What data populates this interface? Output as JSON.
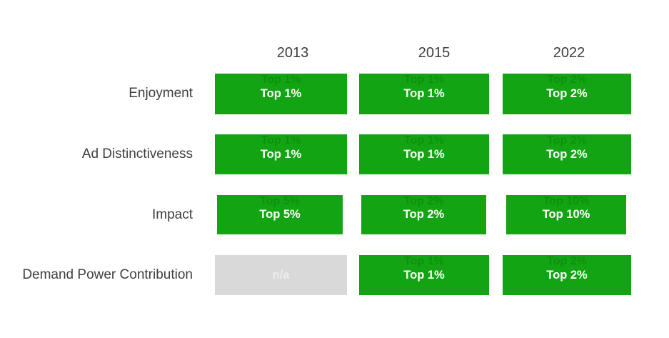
{
  "colors": {
    "positive-green": "#12A412",
    "na-gray": "#D9D9D9",
    "na-text": "#ECECEC",
    "label-text": "#3E3E3E",
    "cell-text": "#FFFFFF",
    "page-bg": "#FFFFFF"
  },
  "chart_data": {
    "type": "table",
    "columns": [
      "2013",
      "2015",
      "2022"
    ],
    "row_labels": [
      "Enjoyment",
      "Ad Distinctiveness",
      "Impact",
      "Demand Power Contribution"
    ],
    "values": [
      [
        "Top 1%",
        "Top 1%",
        "Top 2%"
      ],
      [
        "Top 1%",
        "Top 1%",
        "Top 2%"
      ],
      [
        "Top 5%",
        "Top 2%",
        "Top 10%"
      ],
      [
        "n/a",
        "Top 1%",
        "Top 2%"
      ]
    ],
    "cell_states": [
      [
        "green",
        "green",
        "green"
      ],
      [
        "green",
        "green",
        "green"
      ],
      [
        "green",
        "green",
        "green"
      ],
      [
        "na",
        "green",
        "green"
      ]
    ],
    "grid": false,
    "legend_position": "none"
  }
}
